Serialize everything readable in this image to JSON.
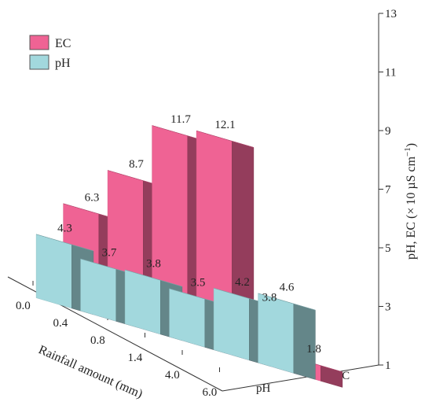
{
  "chart_data": {
    "type": "bar",
    "title": "",
    "xlabel": "Rainfall amount (mm)",
    "ylabel": "pH, EC (×10 µS cm⁻¹)",
    "ylabel_parts": {
      "main": "pH, EC (",
      "times": "×",
      "unit": "10 µS cm",
      "exp": "−1",
      "close": ")"
    },
    "categories": [
      "0.0",
      "0.4",
      "0.8",
      "1.4",
      "4.0",
      "6.0"
    ],
    "depth_categories": [
      "pH",
      "EC"
    ],
    "ylim": [
      1,
      13
    ],
    "yticks": [
      "1",
      "3",
      "5",
      "7",
      "9",
      "11",
      "13"
    ],
    "legend": {
      "placement": "top-left",
      "items": [
        "EC",
        "pH"
      ]
    },
    "series": [
      {
        "name": "EC",
        "color": "#ef6394",
        "values": [
          6.3,
          8.7,
          11.7,
          12.1,
          3.8,
          1.8
        ],
        "value_labels": [
          "6.3",
          "8.7",
          "11.7",
          "12.1",
          "3.8",
          "1.8"
        ]
      },
      {
        "name": "pH",
        "color": "#a2d8dd",
        "values": [
          4.3,
          3.7,
          3.8,
          3.5,
          4.2,
          4.6
        ],
        "value_labels": [
          "4.3",
          "3.7",
          "3.8",
          "3.5",
          "4.2",
          "4.6"
        ]
      }
    ]
  }
}
